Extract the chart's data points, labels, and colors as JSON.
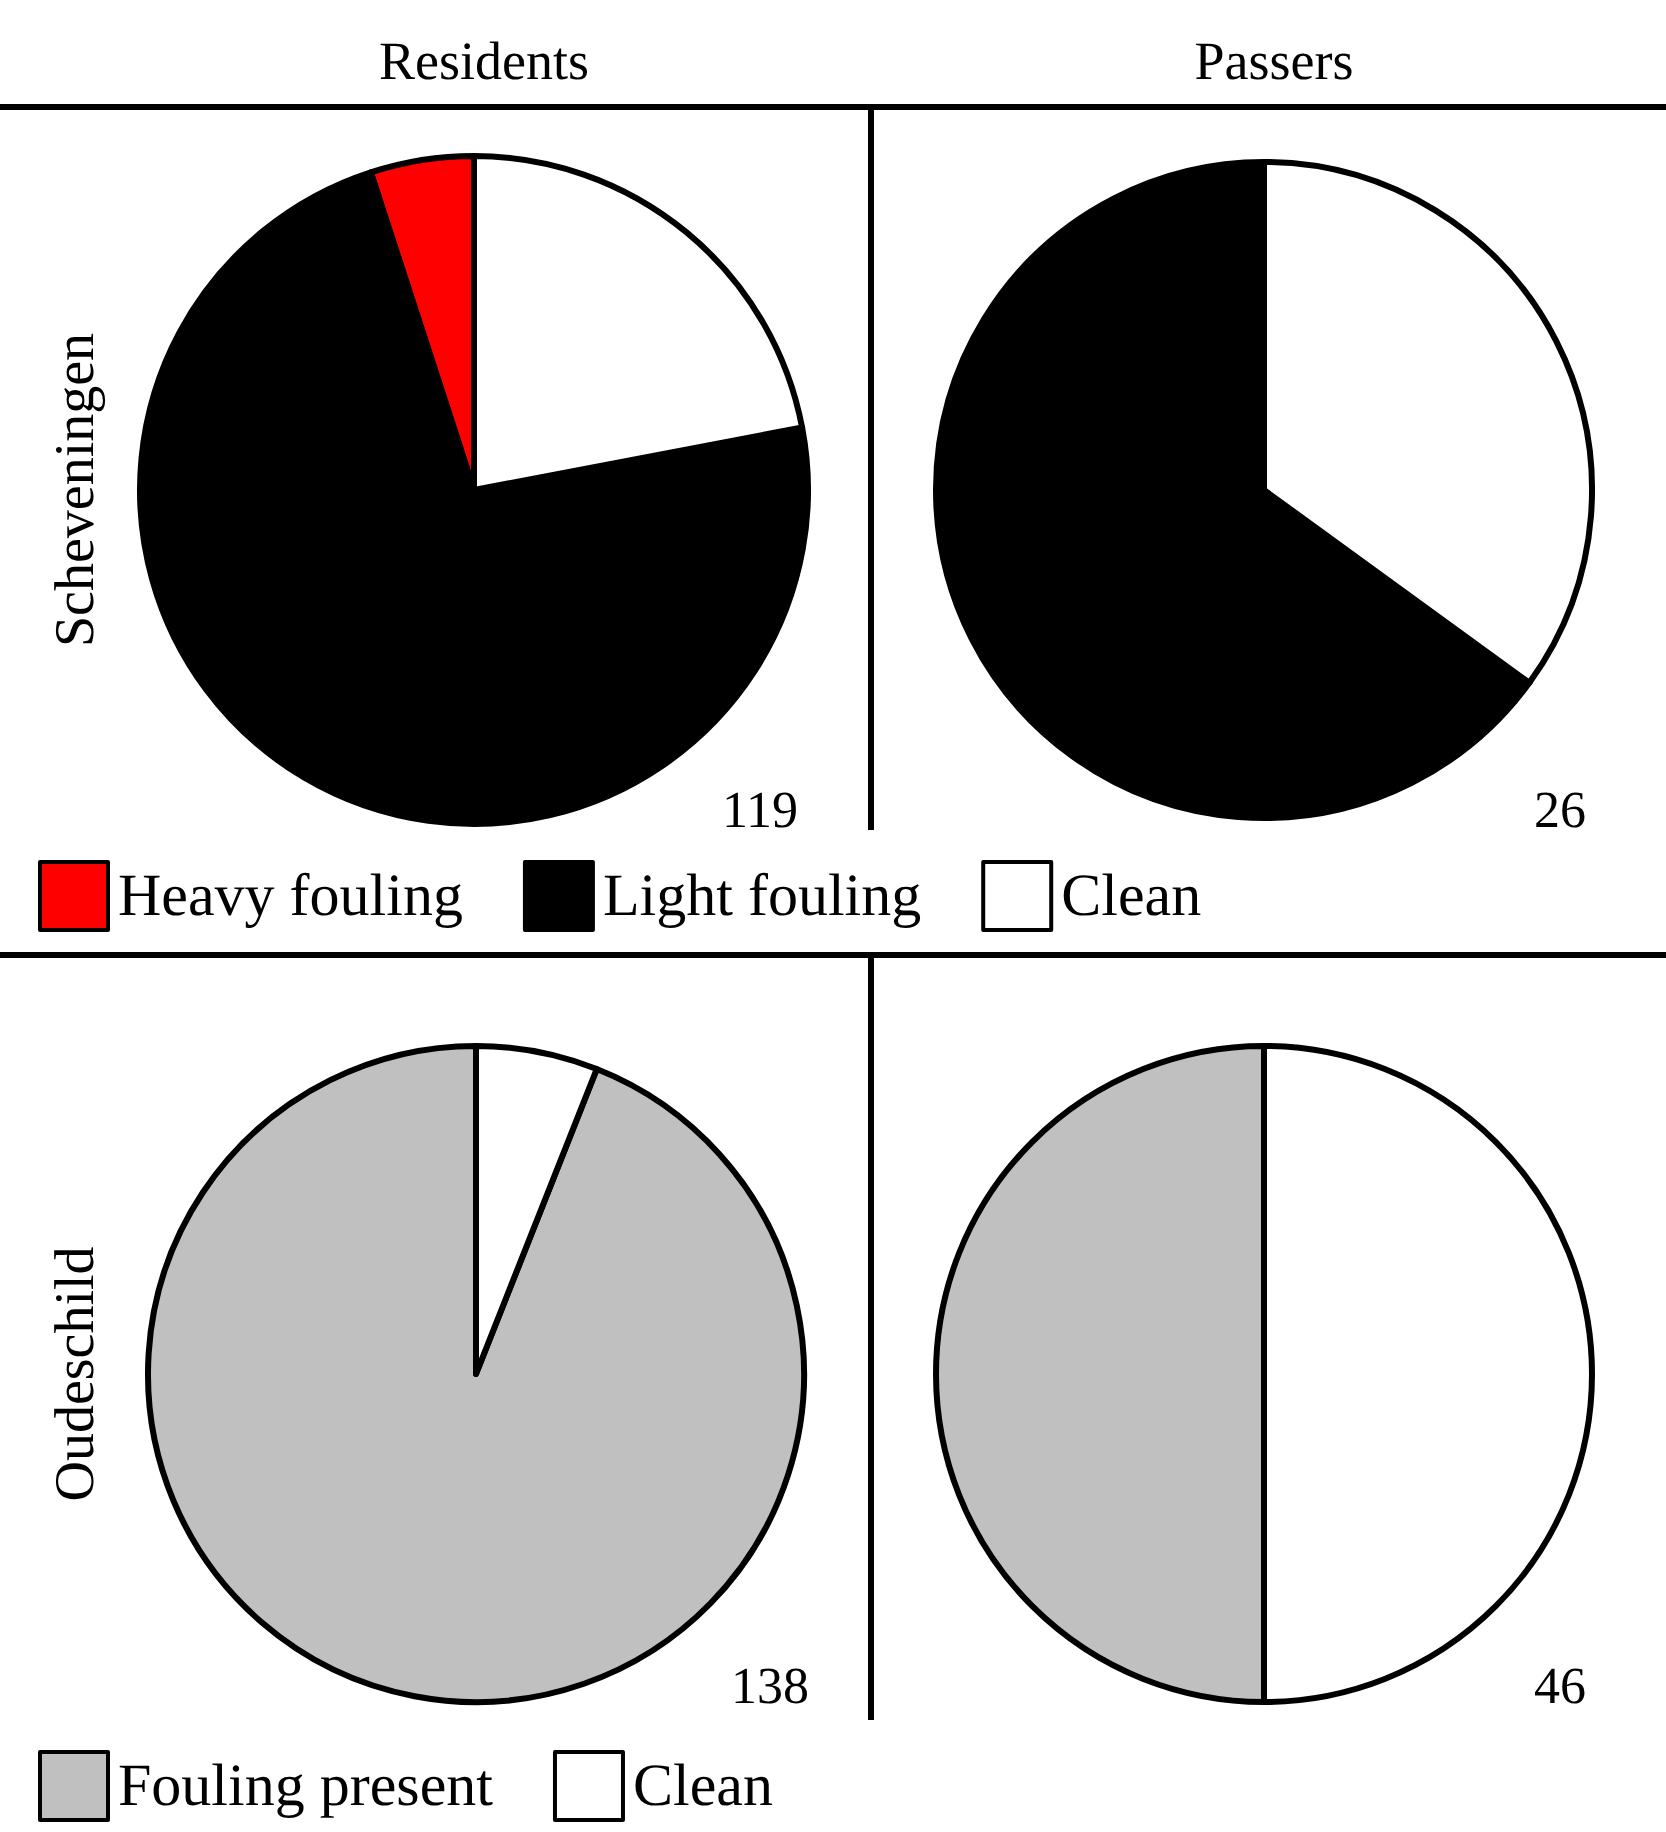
{
  "chart_data": [
    {
      "type": "pie",
      "title": "Residents",
      "ylabel": "Scheveningen",
      "categories": [
        "Heavy fouling",
        "Light fouling",
        "Clean"
      ],
      "values": [
        5,
        73,
        22
      ],
      "colors": [
        "#ff0000",
        "#000000",
        "#ffffff"
      ],
      "legend": "bottom",
      "annotations": [
        "119"
      ]
    },
    {
      "type": "pie",
      "title": "Passers",
      "categories": [
        null,
        null
      ],
      "values": [
        65,
        35
      ],
      "colors": [
        "#000000",
        "#ffffff"
      ],
      "annotations": [
        "26"
      ]
    },
    {
      "type": "pie",
      "ylabel": "Oudeschild",
      "categories": [
        "Fouling present",
        "Clean"
      ],
      "values": [
        94,
        6
      ],
      "colors": [
        "#c0c0c0",
        "#ffffff"
      ],
      "legend": "bottom",
      "annotations": [
        "138"
      ]
    },
    {
      "type": "pie",
      "categories": [
        null,
        null
      ],
      "values": [
        50,
        50
      ],
      "colors": [
        "#c0c0c0",
        "#ffffff"
      ],
      "annotations": [
        "46"
      ]
    }
  ]
}
